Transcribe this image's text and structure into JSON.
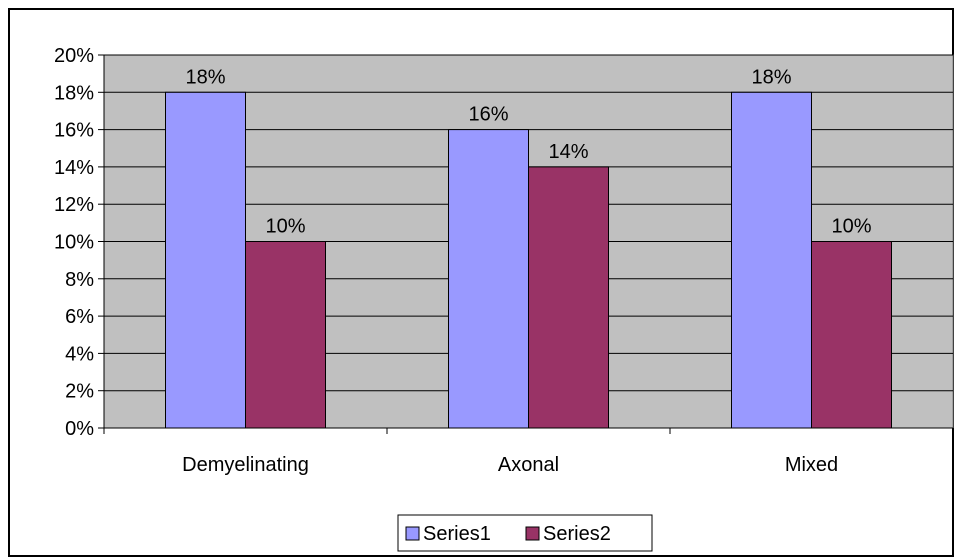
{
  "chart_data": {
    "type": "bar",
    "categories": [
      "Demyelinating",
      "Axonal",
      "Mixed"
    ],
    "series": [
      {
        "name": "Series1",
        "values": [
          18,
          16,
          18
        ],
        "labels": [
          "18%",
          "16%",
          "18%"
        ],
        "color": "#9999ff"
      },
      {
        "name": "Series2",
        "values": [
          10,
          14,
          10
        ],
        "labels": [
          "10%",
          "14%",
          "10%"
        ],
        "color": "#993366"
      }
    ],
    "y_ticks": [
      "0%",
      "2%",
      "4%",
      "6%",
      "8%",
      "10%",
      "12%",
      "14%",
      "16%",
      "18%",
      "20%"
    ],
    "ylim": [
      0,
      20
    ],
    "y_unit": "%",
    "grid": true,
    "plot_background": "#c0c0c0",
    "legend_position": "bottom"
  }
}
